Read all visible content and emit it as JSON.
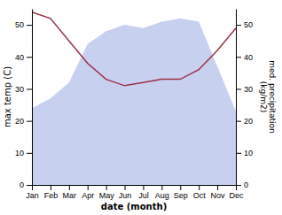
{
  "chart_data": {
    "type": "line",
    "xlabel": "date (month)",
    "ylabel": "max temp (C)",
    "y2label": "med. precipitation\n(kg/m2)",
    "categories": [
      "Jan",
      "Feb",
      "Mar",
      "Apr",
      "May",
      "Jun",
      "Jul",
      "Aug",
      "Sep",
      "Oct",
      "Nov",
      "Dec"
    ],
    "series": [
      {
        "type": "area",
        "axis": "y2",
        "color": "#c8d0f0",
        "values": [
          24,
          27,
          32,
          44,
          48,
          50,
          49,
          51,
          52,
          51,
          37,
          23
        ]
      },
      {
        "type": "line",
        "color": "#9b3045",
        "values": [
          54,
          52,
          45,
          38,
          33,
          31,
          32,
          33,
          33,
          36,
          42,
          49
        ]
      }
    ],
    "ylim": [
      0,
      55
    ],
    "yticks": [
      0,
      10,
      20,
      30,
      40,
      50
    ],
    "y2lim": [
      0,
      55
    ],
    "y2ticks": [
      0,
      10,
      20,
      30,
      40,
      50
    ],
    "grid": false
  }
}
